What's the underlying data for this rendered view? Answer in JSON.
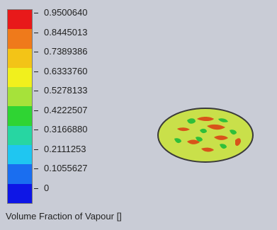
{
  "legend": {
    "title": "Volume Fraction of Vapour []",
    "labels": [
      "0.9500640",
      "0.8445013",
      "0.7389386",
      "0.6333760",
      "0.5278133",
      "0.4222507",
      "0.3166880",
      "0.2111253",
      "0.1055627",
      "0"
    ],
    "colors": [
      "#e8191a",
      "#ef7a1b",
      "#f3c417",
      "#f1f01d",
      "#a6e23a",
      "#2fd433",
      "#27d6a2",
      "#1fc6f1",
      "#1a6ef0",
      "#0e16e6"
    ]
  },
  "contour": {
    "base_color": "#c9e04a",
    "outline_color": "#3a3a3a",
    "spot_colors": [
      "#d8541a",
      "#2fbf3a"
    ]
  }
}
